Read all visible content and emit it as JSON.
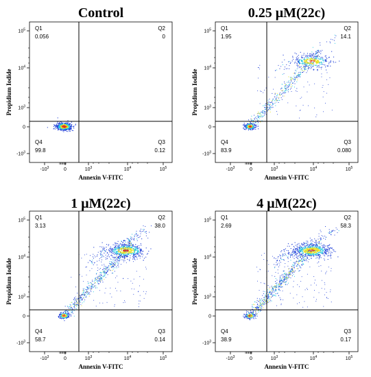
{
  "chart_data": [
    {
      "type": "scatter",
      "title": "Control",
      "xlabel": "Annexin V-FITC",
      "ylabel": "Propidium Iodide",
      "scale": "biexponential",
      "x_ticks": [
        "-10^3",
        "0",
        "10^3",
        "10^4",
        "10^5"
      ],
      "y_ticks": [
        "-10^3",
        "0",
        "10^3",
        "10^4",
        "10^5"
      ],
      "quadrants": [
        {
          "name": "Q1",
          "value": "0.056"
        },
        {
          "name": "Q2",
          "value": "0"
        },
        {
          "name": "Q3",
          "value": "0.12"
        },
        {
          "name": "Q4",
          "value": "99.8"
        }
      ]
    },
    {
      "type": "scatter",
      "title": "0.25 μM(22c)",
      "xlabel": "Annexin V-FITC",
      "ylabel": "Propidium Iodide",
      "scale": "biexponential",
      "x_ticks": [
        "-10^3",
        "0",
        "10^3",
        "10^4",
        "10^5"
      ],
      "y_ticks": [
        "-10^3",
        "0",
        "10^3",
        "10^4",
        "10^5"
      ],
      "quadrants": [
        {
          "name": "Q1",
          "value": "1.95"
        },
        {
          "name": "Q2",
          "value": "14.1"
        },
        {
          "name": "Q3",
          "value": "0.080"
        },
        {
          "name": "Q4",
          "value": "83.9"
        }
      ]
    },
    {
      "type": "scatter",
      "title": "1 μM(22c)",
      "xlabel": "Annexin V-FITC",
      "ylabel": "Propidium Iodide",
      "scale": "biexponential",
      "x_ticks": [
        "-10^3",
        "0",
        "10^3",
        "10^4",
        "10^5"
      ],
      "y_ticks": [
        "-10^3",
        "0",
        "10^3",
        "10^4",
        "10^5"
      ],
      "quadrants": [
        {
          "name": "Q1",
          "value": "3.13"
        },
        {
          "name": "Q2",
          "value": "38.0"
        },
        {
          "name": "Q3",
          "value": "0.14"
        },
        {
          "name": "Q4",
          "value": "58.7"
        }
      ]
    },
    {
      "type": "scatter",
      "title": "4 μM(22c)",
      "xlabel": "Annexin V-FITC",
      "ylabel": "Propidium Iodide",
      "scale": "biexponential",
      "x_ticks": [
        "-10^3",
        "0",
        "10^3",
        "10^4",
        "10^5"
      ],
      "y_ticks": [
        "-10^3",
        "0",
        "10^3",
        "10^4",
        "10^5"
      ],
      "quadrants": [
        {
          "name": "Q1",
          "value": "2.69"
        },
        {
          "name": "Q2",
          "value": "58.3"
        },
        {
          "name": "Q3",
          "value": "0.17"
        },
        {
          "name": "Q4",
          "value": "38.9"
        }
      ]
    }
  ],
  "colors": {
    "axis": "#000000",
    "density_low": "#1f3fd8",
    "density_mid": "#22c8e0",
    "density_high": "#e8e020",
    "density_peak": "#e03020"
  }
}
